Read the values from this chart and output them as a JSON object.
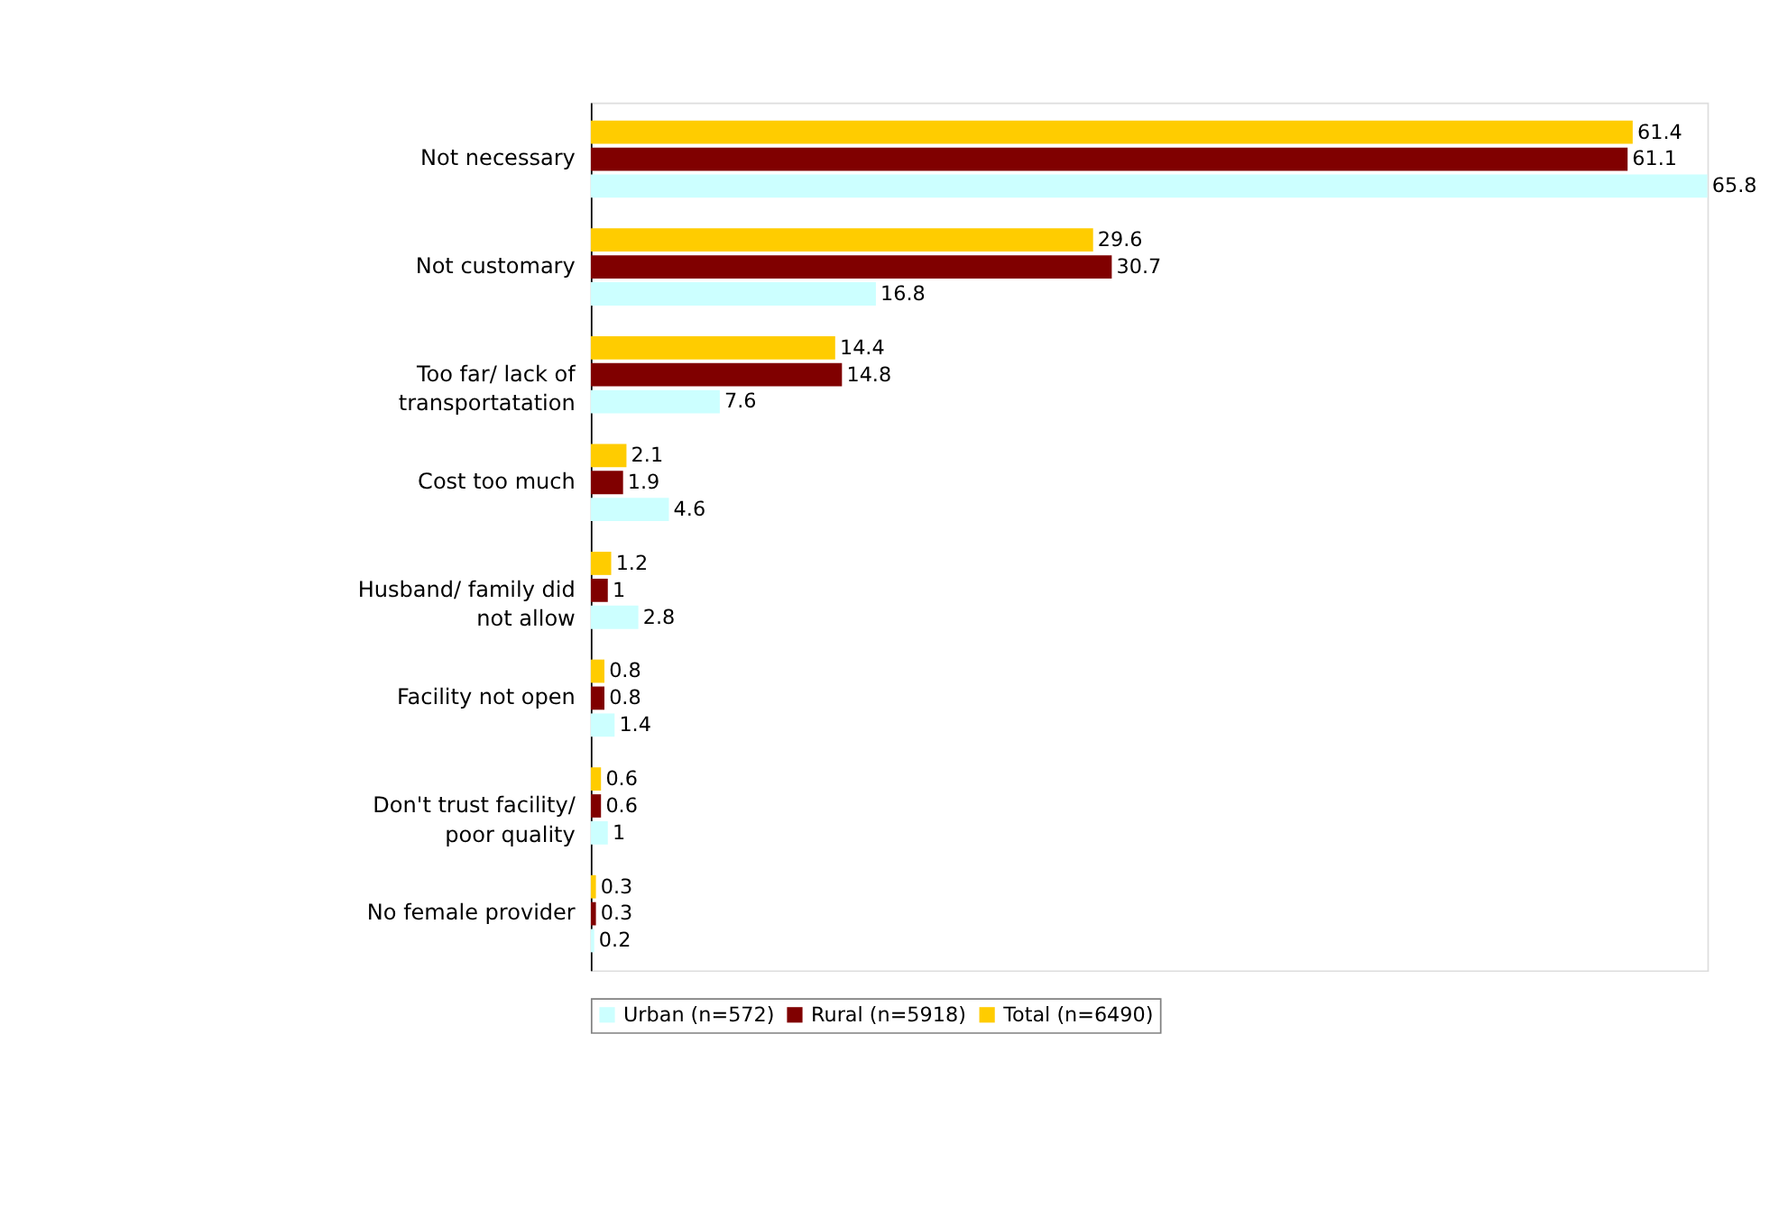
{
  "chart_data": {
    "type": "bar",
    "orientation": "horizontal",
    "data_labels": true,
    "legend": "bottom",
    "grid": false,
    "categories": [
      "Not necessary",
      "Not customary",
      "Too far/ lack of transportatation",
      "Cost too much",
      "Husband/ family did not allow",
      "Facility not open",
      "Don't trust facility/ poor quality",
      "No female provider"
    ],
    "series": [
      {
        "name": "Urban (n=572)",
        "color": "#ccffff",
        "values": [
          65.8,
          16.8,
          7.6,
          4.6,
          2.8,
          1.4,
          1,
          0.2
        ]
      },
      {
        "name": "Rural (n=5918)",
        "color": "#800000",
        "values": [
          61.1,
          30.7,
          14.8,
          1.9,
          1,
          0.8,
          0.6,
          0.3
        ]
      },
      {
        "name": "Total (n=6490)",
        "color": "#ffcc00",
        "values": [
          61.4,
          29.6,
          14.4,
          2.1,
          1.2,
          0.8,
          0.6,
          0.3
        ]
      }
    ]
  }
}
